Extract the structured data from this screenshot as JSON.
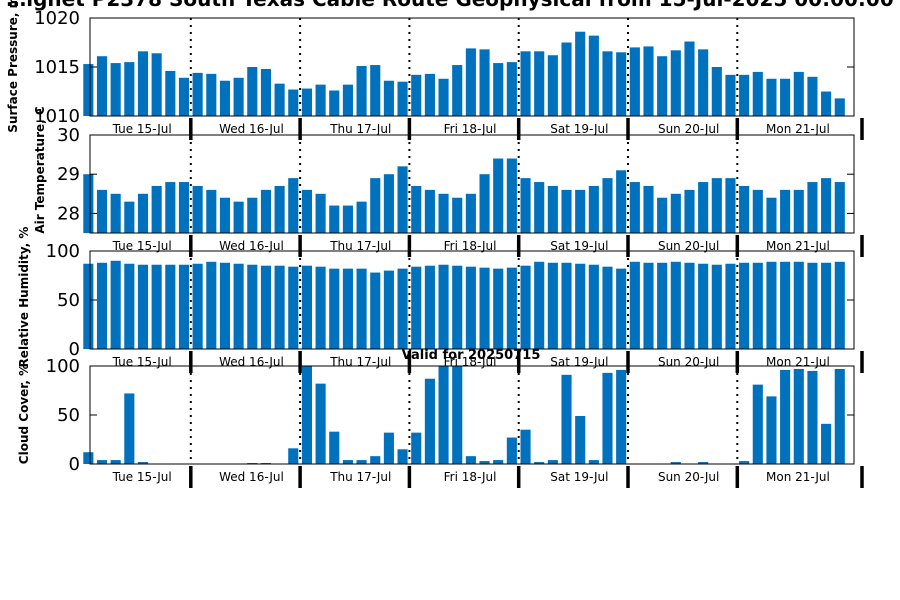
{
  "figure": {
    "title": "…ignet P2378 South Texas Cable Route Geophysical from 15-Jul-2025 00:00:00",
    "subtitle": "Valid for 20250715"
  },
  "colors": {
    "bar": "#0072bd",
    "axis": "#000000",
    "separator": "#000000"
  },
  "chart_data": [
    {
      "type": "bar",
      "name": "surface-pressure",
      "ylabel": "Surface Pressure, mb",
      "ylim": [
        1010,
        1020
      ],
      "yticks": [
        1010,
        1015,
        1020
      ],
      "day_labels": [
        "Tue 15-Jul",
        "Wed 16-Jul",
        "Thu 17-Jul",
        "Fri 18-Jul",
        "Sat 19-Jul",
        "Sun 20-Jul",
        "Mon 21-Jul"
      ],
      "values": [
        1015.3,
        1016.1,
        1015.4,
        1015.5,
        1016.6,
        1016.4,
        1014.6,
        1013.9,
        1014.4,
        1014.3,
        1013.6,
        1013.9,
        1015.0,
        1014.8,
        1013.3,
        1012.7,
        1012.8,
        1013.2,
        1012.6,
        1013.2,
        1015.1,
        1015.2,
        1013.6,
        1013.5,
        1014.2,
        1014.3,
        1013.8,
        1015.2,
        1016.9,
        1016.8,
        1015.4,
        1015.5,
        1016.6,
        1016.6,
        1016.2,
        1017.5,
        1018.6,
        1018.2,
        1016.6,
        1016.5,
        1017.0,
        1017.1,
        1016.1,
        1016.7,
        1017.6,
        1016.8,
        1015.0,
        1014.2,
        1014.2,
        1014.5,
        1013.8,
        1013.8,
        1014.5,
        1014.0,
        1012.5,
        1011.8
      ],
      "grid": false
    },
    {
      "type": "bar",
      "name": "air-temperature",
      "ylabel": "Air Temperature, C",
      "ylim": [
        27.5,
        30
      ],
      "yticks": [
        28,
        29,
        30
      ],
      "day_labels": [
        "Tue 15-Jul",
        "Wed 16-Jul",
        "Thu 17-Jul",
        "Fri 18-Jul",
        "Sat 19-Jul",
        "Sun 20-Jul",
        "Mon 21-Jul"
      ],
      "values": [
        29.0,
        28.6,
        28.5,
        28.3,
        28.5,
        28.7,
        28.8,
        28.8,
        28.7,
        28.6,
        28.4,
        28.3,
        28.4,
        28.6,
        28.7,
        28.9,
        28.6,
        28.5,
        28.2,
        28.2,
        28.3,
        28.9,
        29.0,
        29.2,
        28.7,
        28.6,
        28.5,
        28.4,
        28.5,
        29.0,
        29.4,
        29.4,
        28.9,
        28.8,
        28.7,
        28.6,
        28.6,
        28.7,
        28.9,
        29.1,
        28.8,
        28.7,
        28.4,
        28.5,
        28.6,
        28.8,
        28.9,
        28.9,
        28.7,
        28.6,
        28.4,
        28.6,
        28.6,
        28.8,
        28.9,
        28.8
      ],
      "grid": false
    },
    {
      "type": "bar",
      "name": "relative-humidity",
      "ylabel": "Relative Humidity, %",
      "ylim": [
        0,
        100
      ],
      "yticks": [
        0,
        50,
        100
      ],
      "day_labels": [
        "Tue 15-Jul",
        "Wed 16-Jul",
        "Thu 17-Jul",
        "Fri 18-Jul",
        "Sat 19-Jul",
        "Sun 20-Jul",
        "Mon 21-Jul"
      ],
      "values": [
        87,
        88,
        90,
        87,
        86,
        86,
        86,
        86,
        87,
        89,
        88,
        87,
        86,
        85,
        85,
        84,
        85,
        84,
        82,
        82,
        82,
        78,
        80,
        82,
        84,
        85,
        86,
        85,
        84,
        83,
        82,
        83,
        85,
        89,
        88,
        88,
        87,
        86,
        84,
        82,
        89,
        88,
        88,
        89,
        88,
        87,
        86,
        87,
        88,
        88,
        89,
        89,
        89,
        88,
        88,
        89
      ],
      "grid": false
    },
    {
      "type": "bar",
      "name": "cloud-cover",
      "ylabel": "Cloud Cover, %",
      "ylim": [
        0,
        100
      ],
      "yticks": [
        0,
        50,
        100
      ],
      "day_labels": [
        "Tue 15-Jul",
        "Wed 16-Jul",
        "Thu 17-Jul",
        "Fri 18-Jul",
        "Sat 19-Jul",
        "Sun 20-Jul",
        "Mon 21-Jul"
      ],
      "values": [
        12,
        4,
        4,
        72,
        2,
        0,
        0,
        0,
        0,
        0,
        0,
        0,
        1,
        1,
        0,
        16,
        100,
        82,
        33,
        4,
        4,
        8,
        32,
        15,
        32,
        87,
        100,
        100,
        8,
        3,
        4,
        27,
        35,
        2,
        4,
        91,
        49,
        4,
        93,
        96,
        0,
        0,
        0,
        2,
        0,
        2,
        0,
        0,
        3,
        81,
        69,
        96,
        97,
        95,
        41,
        97
      ],
      "grid": false
    }
  ]
}
